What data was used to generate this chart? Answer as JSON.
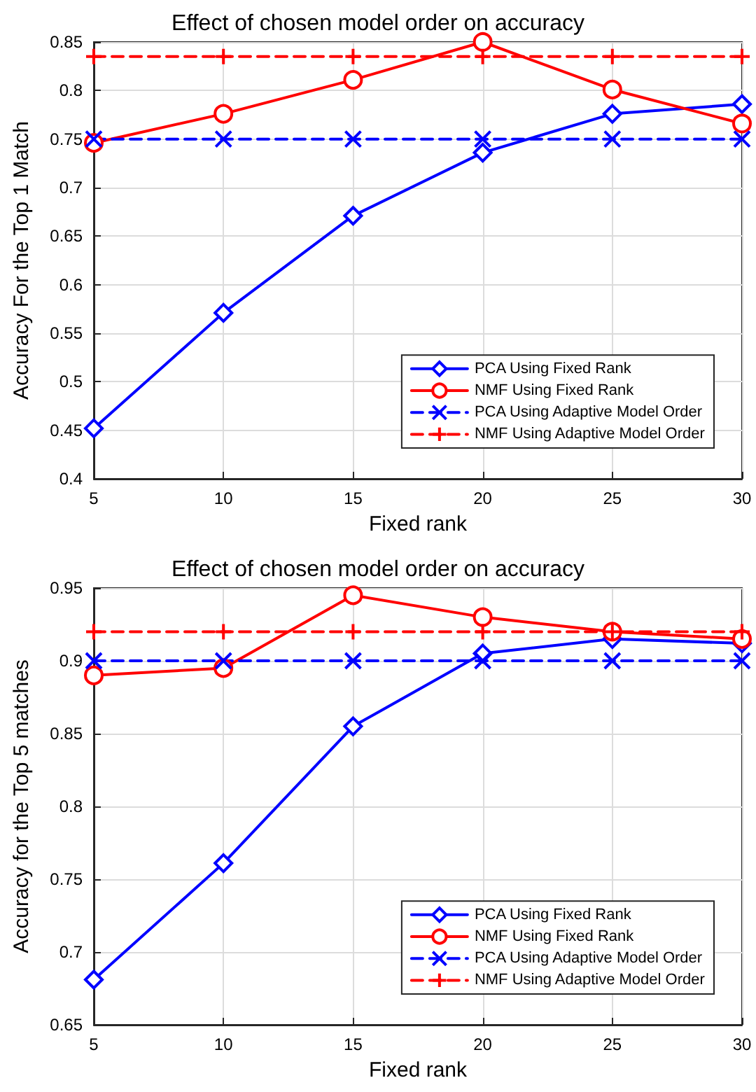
{
  "chart_data": [
    {
      "type": "line",
      "title": "Effect of chosen model order on accuracy",
      "xlabel": "Fixed rank",
      "ylabel": "Accuracy For the Top 1 Match",
      "x": [
        5,
        10,
        15,
        20,
        25,
        30
      ],
      "xlim": [
        5,
        30
      ],
      "xticks": [
        5,
        10,
        15,
        20,
        25,
        30
      ],
      "ylim": [
        0.4,
        0.85
      ],
      "yticks": [
        0.4,
        0.45,
        0.5,
        0.55,
        0.6,
        0.65,
        0.7,
        0.75,
        0.8,
        0.85
      ],
      "grid": true,
      "legend": "bottom right",
      "series": [
        {
          "name": "PCA Using Fixed Rank",
          "color": "#0000ff",
          "marker": "diamond",
          "line_style": "solid",
          "values": [
            0.452,
            0.571,
            0.671,
            0.736,
            0.776,
            0.786
          ]
        },
        {
          "name": "NMF Using Fixed Rank",
          "color": "#ff0000",
          "marker": "circle",
          "line_style": "solid",
          "values": [
            0.746,
            0.776,
            0.811,
            0.85,
            0.801,
            0.766
          ]
        },
        {
          "name": "PCA Using Adaptive Model Order",
          "color": "#0000ff",
          "marker": "cross",
          "line_style": "dashed",
          "values": [
            0.75,
            0.75,
            0.75,
            0.75,
            0.75,
            0.75
          ]
        },
        {
          "name": "NMF Using Adaptive Model Order",
          "color": "#ff0000",
          "marker": "plus",
          "line_style": "dashed",
          "values": [
            0.835,
            0.835,
            0.835,
            0.835,
            0.835,
            0.835
          ]
        }
      ]
    },
    {
      "type": "line",
      "title": "Effect of chosen model order on accuracy",
      "xlabel": "Fixed rank",
      "ylabel": "Accuracy for the Top 5 matches",
      "x": [
        5,
        10,
        15,
        20,
        25,
        30
      ],
      "xlim": [
        5,
        30
      ],
      "xticks": [
        5,
        10,
        15,
        20,
        25,
        30
      ],
      "ylim": [
        0.65,
        0.95
      ],
      "yticks": [
        0.65,
        0.7,
        0.75,
        0.8,
        0.85,
        0.9,
        0.95
      ],
      "grid": true,
      "legend": "bottom right",
      "series": [
        {
          "name": "PCA Using Fixed Rank",
          "color": "#0000ff",
          "marker": "diamond",
          "line_style": "solid",
          "values": [
            0.681,
            0.761,
            0.855,
            0.905,
            0.915,
            0.912
          ]
        },
        {
          "name": "NMF Using Fixed Rank",
          "color": "#ff0000",
          "marker": "circle",
          "line_style": "solid",
          "values": [
            0.89,
            0.895,
            0.945,
            0.93,
            0.92,
            0.915
          ]
        },
        {
          "name": "PCA Using Adaptive Model Order",
          "color": "#0000ff",
          "marker": "cross",
          "line_style": "dashed",
          "values": [
            0.9,
            0.9,
            0.9,
            0.9,
            0.9,
            0.9
          ]
        },
        {
          "name": "NMF Using Adaptive Model Order",
          "color": "#ff0000",
          "marker": "plus",
          "line_style": "dashed",
          "values": [
            0.92,
            0.92,
            0.92,
            0.92,
            0.92,
            0.92
          ]
        }
      ]
    }
  ]
}
